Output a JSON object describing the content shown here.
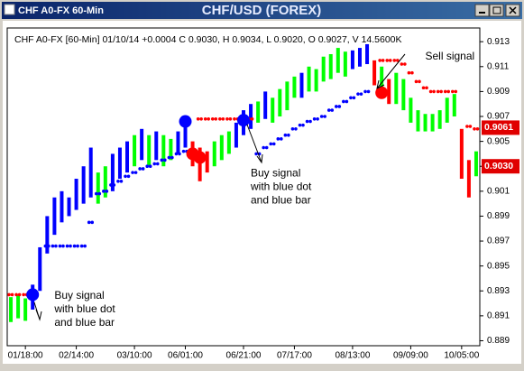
{
  "window": {
    "title": "CHF A0-FX 60-Min"
  },
  "chart_data": {
    "type": "bar",
    "title": "CHF/USD (FOREX)",
    "subtitle": "CHF A0-FX [60-Min] 01/10/14 +0.0004 C 0.9030, H 0.9034, L 0.9020, O 0.9027, V 14.5600K",
    "high": [
      0.8925,
      0.8927,
      0.8924,
      0.8935,
      0.8965,
      0.899,
      0.9005,
      0.901,
      0.9005,
      0.902,
      0.903,
      0.9045,
      0.9025,
      0.903,
      0.904,
      0.9045,
      0.905,
      0.9055,
      0.906,
      0.9055,
      0.9058,
      0.9055,
      0.9052,
      0.9058,
      0.9065,
      0.905,
      0.9045,
      0.9042,
      0.905,
      0.9055,
      0.9058,
      0.9065,
      0.9075,
      0.908,
      0.9082,
      0.909,
      0.9085,
      0.9092,
      0.9098,
      0.9102,
      0.9105,
      0.911,
      0.9108,
      0.9118,
      0.912,
      0.9125,
      0.9122,
      0.9123,
      0.9125,
      0.9128,
      0.9115,
      0.911,
      0.91,
      0.9105,
      0.91,
      0.9085,
      0.9075,
      0.9072,
      0.9072,
      0.9075,
      0.9085,
      0.9088,
      0.906,
      0.9035,
      0.9042
    ],
    "low": [
      0.8905,
      0.8908,
      0.8906,
      0.8915,
      0.893,
      0.896,
      0.8975,
      0.8985,
      0.899,
      0.8995,
      0.9,
      0.9005,
      0.9,
      0.9005,
      0.901,
      0.902,
      0.9025,
      0.903,
      0.9035,
      0.903,
      0.9035,
      0.903,
      0.9035,
      0.904,
      0.9045,
      0.903,
      0.9018,
      0.9025,
      0.903,
      0.9035,
      0.904,
      0.9045,
      0.9055,
      0.906,
      0.9065,
      0.9068,
      0.9065,
      0.907,
      0.9075,
      0.9085,
      0.9085,
      0.909,
      0.909,
      0.9098,
      0.91,
      0.9105,
      0.9102,
      0.9108,
      0.911,
      0.9112,
      0.9095,
      0.9085,
      0.908,
      0.908,
      0.9075,
      0.9065,
      0.9058,
      0.9058,
      0.9058,
      0.906,
      0.9065,
      0.907,
      0.902,
      0.9005,
      0.9022
    ],
    "colors": [
      "lime",
      "lime",
      "lime",
      "blue",
      "blue",
      "blue",
      "blue",
      "blue",
      "blue",
      "blue",
      "blue",
      "blue",
      "lime",
      "lime",
      "blue",
      "blue",
      "blue",
      "lime",
      "blue",
      "lime",
      "blue",
      "lime",
      "lime",
      "blue",
      "blue",
      "red",
      "red",
      "red",
      "lime",
      "lime",
      "lime",
      "blue",
      "blue",
      "blue",
      "lime",
      "blue",
      "lime",
      "lime",
      "lime",
      "lime",
      "blue",
      "lime",
      "lime",
      "lime",
      "lime",
      "lime",
      "lime",
      "blue",
      "blue",
      "blue",
      "red",
      "lime",
      "red",
      "lime",
      "lime",
      "lime",
      "lime",
      "lime",
      "lime",
      "lime",
      "lime",
      "lime",
      "red",
      "red",
      "lime"
    ],
    "stops": [
      0.8927,
      0.8927,
      0.8927,
      null,
      null,
      0.8966,
      0.8966,
      0.8966,
      0.8966,
      0.8966,
      0.8966,
      0.8985,
      0.9008,
      0.901,
      0.9015,
      0.9018,
      0.9022,
      0.9025,
      0.9028,
      0.903,
      0.9032,
      0.9035,
      0.9037,
      0.904,
      0.9042,
      null,
      0.9068,
      0.9068,
      0.9068,
      0.9068,
      0.9068,
      0.9068,
      0.9068,
      0.9068,
      0.904,
      0.9045,
      0.9048,
      0.9052,
      0.9055,
      0.906,
      0.9063,
      0.9066,
      0.9068,
      0.907,
      0.9075,
      0.9078,
      0.9082,
      0.9085,
      0.9088,
      0.909,
      null,
      0.9115,
      0.9115,
      0.9115,
      0.9112,
      0.9105,
      0.9098,
      0.9093,
      0.909,
      0.909,
      0.909,
      0.909,
      null,
      0.9062,
      0.906
    ],
    "stop_colors": [
      "red",
      "red",
      "red",
      null,
      null,
      "blue",
      "blue",
      "blue",
      "blue",
      "blue",
      "blue",
      "blue",
      "blue",
      "blue",
      "blue",
      "blue",
      "blue",
      "blue",
      "blue",
      "blue",
      "blue",
      "blue",
      "blue",
      "blue",
      "blue",
      null,
      "red",
      "red",
      "red",
      "red",
      "red",
      "red",
      "red",
      "red",
      "blue",
      "blue",
      "blue",
      "blue",
      "blue",
      "blue",
      "blue",
      "blue",
      "blue",
      "blue",
      "blue",
      "blue",
      "blue",
      "blue",
      "blue",
      "blue",
      null,
      "red",
      "red",
      "red",
      "red",
      "red",
      "red",
      "red",
      "red",
      "red",
      "red",
      "red",
      null,
      "red",
      "red"
    ],
    "signals": [
      {
        "index": 3,
        "value": 0.8927,
        "color": "blue"
      },
      {
        "index": 24,
        "value": 0.9066,
        "color": "blue"
      },
      {
        "index": 25,
        "value": 0.904,
        "color": "red"
      },
      {
        "index": 26,
        "value": 0.9037,
        "color": "red"
      },
      {
        "index": 32,
        "value": 0.9067,
        "color": "blue"
      },
      {
        "index": 51,
        "value": 0.9089,
        "color": "red"
      }
    ],
    "annotations": [
      {
        "lines": [
          "Buy signal",
          "with blue dot",
          "and blue bar"
        ],
        "index": 5,
        "value": 0.8926
      },
      {
        "lines": [
          "Buy signal",
          "with blue dot",
          "and blue bar"
        ],
        "index": 32,
        "value": 0.9024
      },
      {
        "lines": [
          "Sell signal"
        ],
        "index": 56,
        "value": 0.9118
      }
    ],
    "price_labels": [
      {
        "value": 0.9061,
        "label": "0.9061"
      },
      {
        "value": 0.903,
        "label": "0.9030"
      }
    ],
    "xlim": [
      -0.5,
      64.5
    ],
    "xticks": [
      {
        "value": 2,
        "label": "01/18:00"
      },
      {
        "value": 9,
        "label": "02/14:00"
      },
      {
        "value": 17,
        "label": "03/10:00"
      },
      {
        "value": 24,
        "label": "06/01:00"
      },
      {
        "value": 32,
        "label": "06/21:00"
      },
      {
        "value": 39,
        "label": "07/17:00"
      },
      {
        "value": 47,
        "label": "08/13:00"
      },
      {
        "value": 55,
        "label": "09/09:00"
      },
      {
        "value": 62,
        "label": "10/05:00"
      }
    ],
    "ylim": [
      0.8886,
      0.9141
    ],
    "yticks": [
      0.913,
      0.911,
      0.909,
      0.907,
      0.905,
      0.903,
      0.901,
      0.899,
      0.897,
      0.895,
      0.893,
      0.891,
      0.889
    ]
  }
}
